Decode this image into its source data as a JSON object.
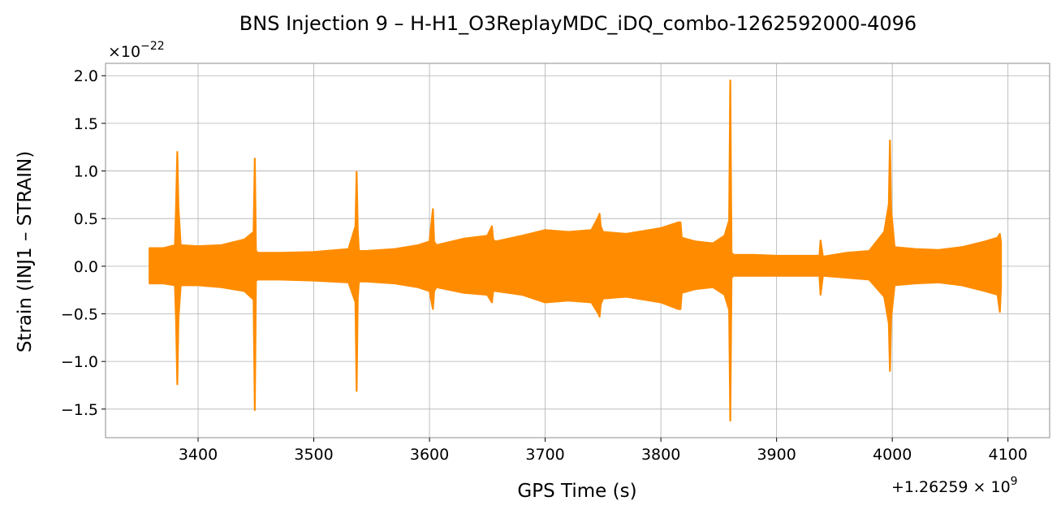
{
  "chart_data": {
    "type": "line",
    "title": "BNS Injection 9 – H-H1_O3ReplayMDC_iDQ_combo-1262592000-4096",
    "xlabel": "GPS Time (s)",
    "ylabel": "Strain (INJ1 – STRAIN)",
    "x_offset_text": "+1.26259 × 10",
    "x_offset_exp": "9",
    "y_scale_text": "×10",
    "y_scale_exp": "−22",
    "x_ticks": [
      3400,
      3500,
      3600,
      3700,
      3800,
      3900,
      4000,
      4100
    ],
    "x_tick_labels": [
      "3400",
      "3500",
      "3600",
      "3700",
      "3800",
      "3900",
      "4000",
      "4100"
    ],
    "y_ticks": [
      -1.5,
      -1.0,
      -0.5,
      0.0,
      0.5,
      1.0,
      1.5,
      2.0
    ],
    "y_tick_labels": [
      "−1.5",
      "−1.0",
      "−0.5",
      "0.0",
      "0.5",
      "1.0",
      "1.5",
      "2.0"
    ],
    "xlim": [
      3320,
      4136
    ],
    "ylim": [
      -1.8,
      2.13
    ],
    "grid": true,
    "color": "#ff8c00",
    "series": [
      {
        "x": [
          3358,
          3370,
          3380,
          3381,
          3382,
          3383,
          3385,
          3400,
          3420,
          3440,
          3448,
          3449,
          3450,
          3452,
          3470,
          3500,
          3530,
          3536,
          3537,
          3538,
          3539,
          3545,
          3570,
          3590,
          3600,
          3603,
          3604,
          3606,
          3630,
          3650,
          3654,
          3655,
          3657,
          3680,
          3700,
          3720,
          3740,
          3746,
          3747,
          3748,
          3750,
          3770,
          3790,
          3800,
          3815,
          3816,
          3817,
          3818,
          3830,
          3845,
          3855,
          3859,
          3860,
          3861,
          3863,
          3880,
          3900,
          3920,
          3937,
          3938,
          3940,
          3960,
          3980,
          3993,
          3997,
          3998,
          3999,
          4002,
          4020,
          4040,
          4060,
          4080,
          4091,
          4093,
          4094
        ],
        "upper": [
          0.19,
          0.19,
          0.22,
          0.64,
          1.2,
          0.62,
          0.22,
          0.21,
          0.22,
          0.28,
          0.36,
          1.13,
          0.16,
          0.14,
          0.14,
          0.15,
          0.18,
          0.42,
          0.99,
          0.38,
          0.16,
          0.16,
          0.18,
          0.22,
          0.26,
          0.6,
          0.26,
          0.22,
          0.29,
          0.32,
          0.42,
          0.28,
          0.26,
          0.32,
          0.38,
          0.36,
          0.38,
          0.52,
          0.55,
          0.42,
          0.36,
          0.34,
          0.38,
          0.4,
          0.46,
          0.46,
          0.46,
          0.3,
          0.26,
          0.24,
          0.32,
          0.48,
          1.95,
          0.14,
          0.12,
          0.12,
          0.11,
          0.11,
          0.11,
          0.27,
          0.1,
          0.14,
          0.16,
          0.36,
          0.65,
          1.32,
          0.6,
          0.2,
          0.18,
          0.17,
          0.2,
          0.26,
          0.3,
          0.34,
          0.25
        ],
        "lower": [
          -0.18,
          -0.18,
          -0.2,
          -0.58,
          -1.24,
          -0.55,
          -0.2,
          -0.2,
          -0.22,
          -0.26,
          -0.35,
          -1.51,
          -0.15,
          -0.14,
          -0.14,
          -0.15,
          -0.17,
          -0.38,
          -1.31,
          -0.34,
          -0.16,
          -0.16,
          -0.18,
          -0.22,
          -0.26,
          -0.45,
          -0.26,
          -0.22,
          -0.28,
          -0.3,
          -0.38,
          -0.26,
          -0.26,
          -0.3,
          -0.38,
          -0.36,
          -0.38,
          -0.5,
          -0.53,
          -0.4,
          -0.34,
          -0.32,
          -0.36,
          -0.38,
          -0.45,
          -0.45,
          -0.45,
          -0.28,
          -0.24,
          -0.22,
          -0.3,
          -0.46,
          -1.62,
          -0.12,
          -0.1,
          -0.1,
          -0.1,
          -0.1,
          -0.1,
          -0.3,
          -0.1,
          -0.12,
          -0.14,
          -0.32,
          -0.6,
          -1.1,
          -0.55,
          -0.2,
          -0.18,
          -0.17,
          -0.2,
          -0.26,
          -0.3,
          -0.48,
          -0.22
        ]
      }
    ]
  }
}
